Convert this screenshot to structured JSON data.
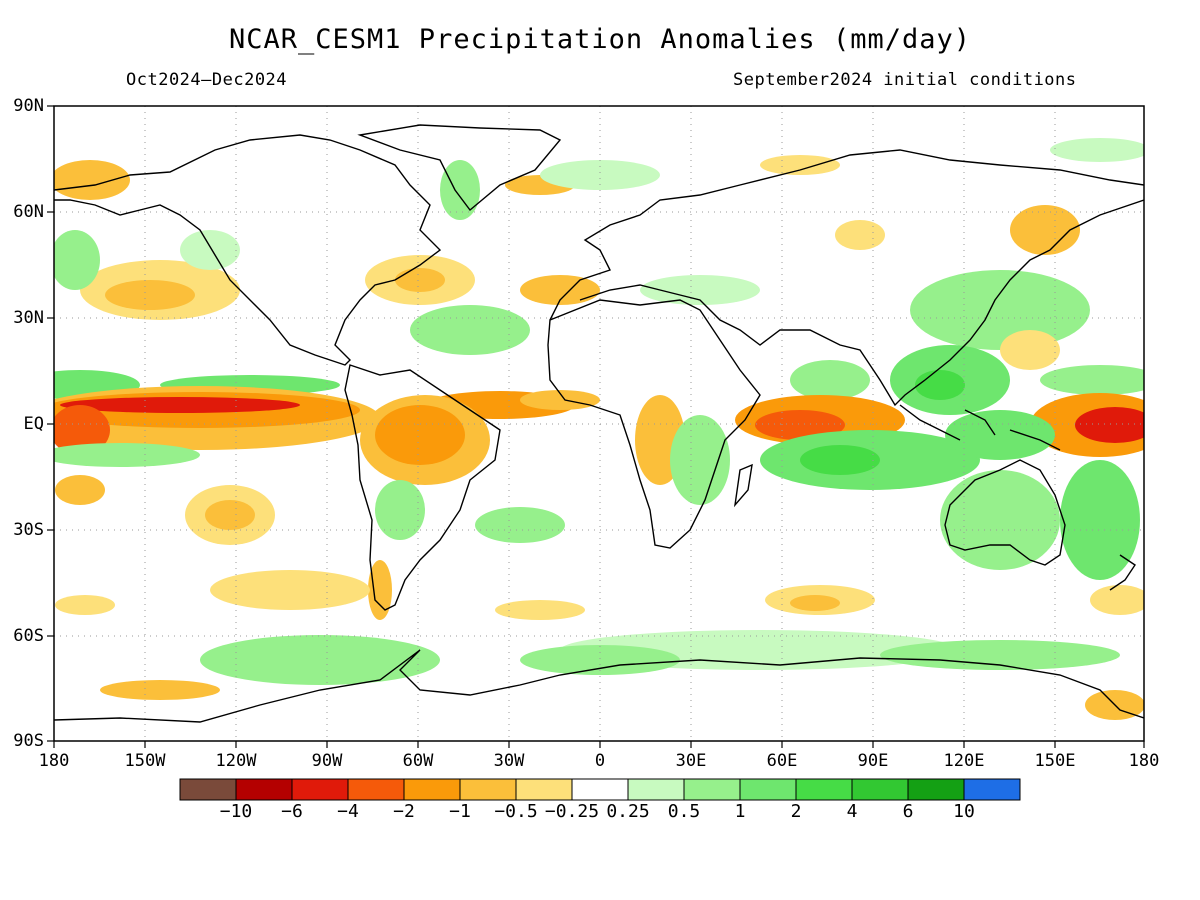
{
  "title": "NCAR_CESM1 Precipitation Anomalies (mm/day)",
  "subtitle_left": "Oct2024–Dec2024",
  "subtitle_right": "September2024 initial conditions",
  "lat_labels": [
    "90N",
    "60N",
    "30N",
    "EQ",
    "30S",
    "60S",
    "90S"
  ],
  "lon_labels": [
    "180",
    "150W",
    "120W",
    "90W",
    "60W",
    "30W",
    "0",
    "30E",
    "60E",
    "90E",
    "120E",
    "150E",
    "180"
  ],
  "colorbar": {
    "labels": [
      "−10",
      "−6",
      "−4",
      "−2",
      "−1",
      "−0.5",
      "−0.25",
      "0.25",
      "0.5",
      "1",
      "2",
      "4",
      "6",
      "10"
    ],
    "colors": [
      "#7a4a3a",
      "#b40000",
      "#e01a0a",
      "#f55a0a",
      "#fa9a0a",
      "#fbbf3a",
      "#fde07a",
      "#ffffff",
      "#c8fac0",
      "#96f08c",
      "#6ee66e",
      "#46dc46",
      "#32c832",
      "#14a014",
      "#1e6ee6"
    ]
  }
}
